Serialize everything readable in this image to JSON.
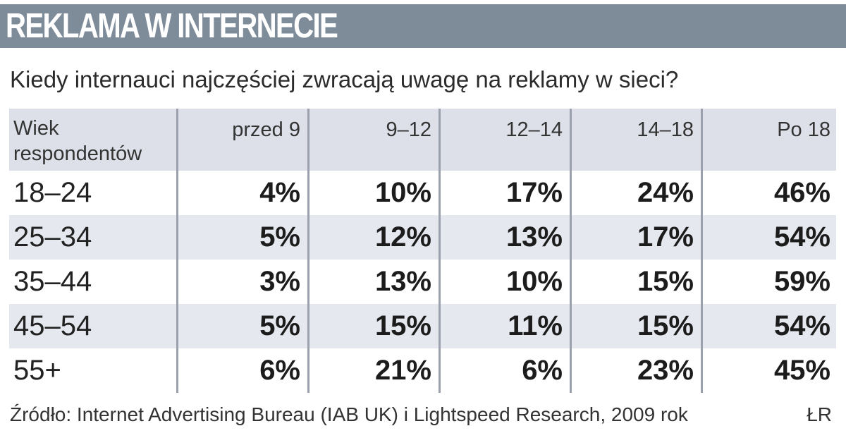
{
  "header": {
    "title": "REKLAMA W INTERNECIE",
    "subtitle": "Kiedy internauci najczęściej zwracają uwagę na reklamy w sieci?"
  },
  "table": {
    "corner_label_line1": "Wiek",
    "corner_label_line2": "respondentów",
    "columns": [
      "przed 9",
      "9–12",
      "12–14",
      "14–18",
      "Po 18"
    ],
    "rows": [
      {
        "label": "18–24",
        "values": [
          "4%",
          "10%",
          "17%",
          "24%",
          "46%"
        ]
      },
      {
        "label": "25–34",
        "values": [
          "5%",
          "12%",
          "13%",
          "17%",
          "54%"
        ]
      },
      {
        "label": "35–44",
        "values": [
          "3%",
          "13%",
          "10%",
          "15%",
          "59%"
        ]
      },
      {
        "label": "45–54",
        "values": [
          "5%",
          "15%",
          "11%",
          "15%",
          "54%"
        ]
      },
      {
        "label": "55+",
        "values": [
          "6%",
          "21%",
          "6%",
          "23%",
          "45%"
        ]
      }
    ]
  },
  "footer": {
    "source": "Źródło: Internet Advertising Bureau (IAB UK) i Lightspeed Research, 2009 rok",
    "credit": "ŁR"
  },
  "colors": {
    "title_bar": "#7e8b99",
    "header_row": "#dde0e8",
    "shaded_row": "#e6e8ef",
    "divider": "#9aa1ad"
  },
  "chart_data": {
    "type": "table",
    "title": "REKLAMA W INTERNECIE",
    "subtitle": "Kiedy internauci najczęściej zwracają uwagę na reklamy w sieci?",
    "row_header": "Wiek respondentów",
    "categories": [
      "przed 9",
      "9–12",
      "12–14",
      "14–18",
      "Po 18"
    ],
    "series": [
      {
        "name": "18–24",
        "values": [
          4,
          10,
          17,
          24,
          46
        ]
      },
      {
        "name": "25–34",
        "values": [
          5,
          12,
          13,
          17,
          54
        ]
      },
      {
        "name": "35–44",
        "values": [
          3,
          13,
          10,
          15,
          59
        ]
      },
      {
        "name": "45–54",
        "values": [
          5,
          15,
          11,
          15,
          54
        ]
      },
      {
        "name": "55+",
        "values": [
          6,
          21,
          6,
          23,
          45
        ]
      }
    ],
    "unit": "%"
  }
}
